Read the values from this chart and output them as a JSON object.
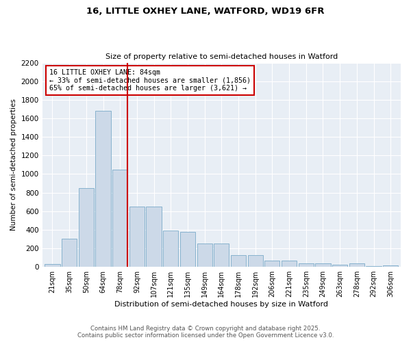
{
  "title_line1": "16, LITTLE OXHEY LANE, WATFORD, WD19 6FR",
  "title_line2": "Size of property relative to semi-detached houses in Watford",
  "xlabel": "Distribution of semi-detached houses by size in Watford",
  "ylabel": "Number of semi-detached properties",
  "categories": [
    "21sqm",
    "35sqm",
    "50sqm",
    "64sqm",
    "78sqm",
    "92sqm",
    "107sqm",
    "121sqm",
    "135sqm",
    "149sqm",
    "164sqm",
    "178sqm",
    "192sqm",
    "206sqm",
    "221sqm",
    "235sqm",
    "249sqm",
    "263sqm",
    "278sqm",
    "292sqm",
    "306sqm"
  ],
  "values": [
    30,
    300,
    850,
    1680,
    1050,
    650,
    650,
    390,
    380,
    250,
    250,
    130,
    130,
    70,
    70,
    40,
    40,
    25,
    40,
    8,
    15
  ],
  "bar_color": "#ccd9e8",
  "bar_edge_color": "#7aaac8",
  "vline_x_index": 4,
  "vline_color": "#cc0000",
  "annotation_text": "16 LITTLE OXHEY LANE: 84sqm\n← 33% of semi-detached houses are smaller (1,856)\n65% of semi-detached houses are larger (3,621) →",
  "annotation_box_color": "#cc0000",
  "ylim": [
    0,
    2200
  ],
  "yticks": [
    0,
    200,
    400,
    600,
    800,
    1000,
    1200,
    1400,
    1600,
    1800,
    2000,
    2200
  ],
  "fig_bg_color": "#ffffff",
  "plot_bg_color": "#e8eef5",
  "grid_color": "#ffffff",
  "footer_line1": "Contains HM Land Registry data © Crown copyright and database right 2025.",
  "footer_line2": "Contains public sector information licensed under the Open Government Licence v3.0."
}
